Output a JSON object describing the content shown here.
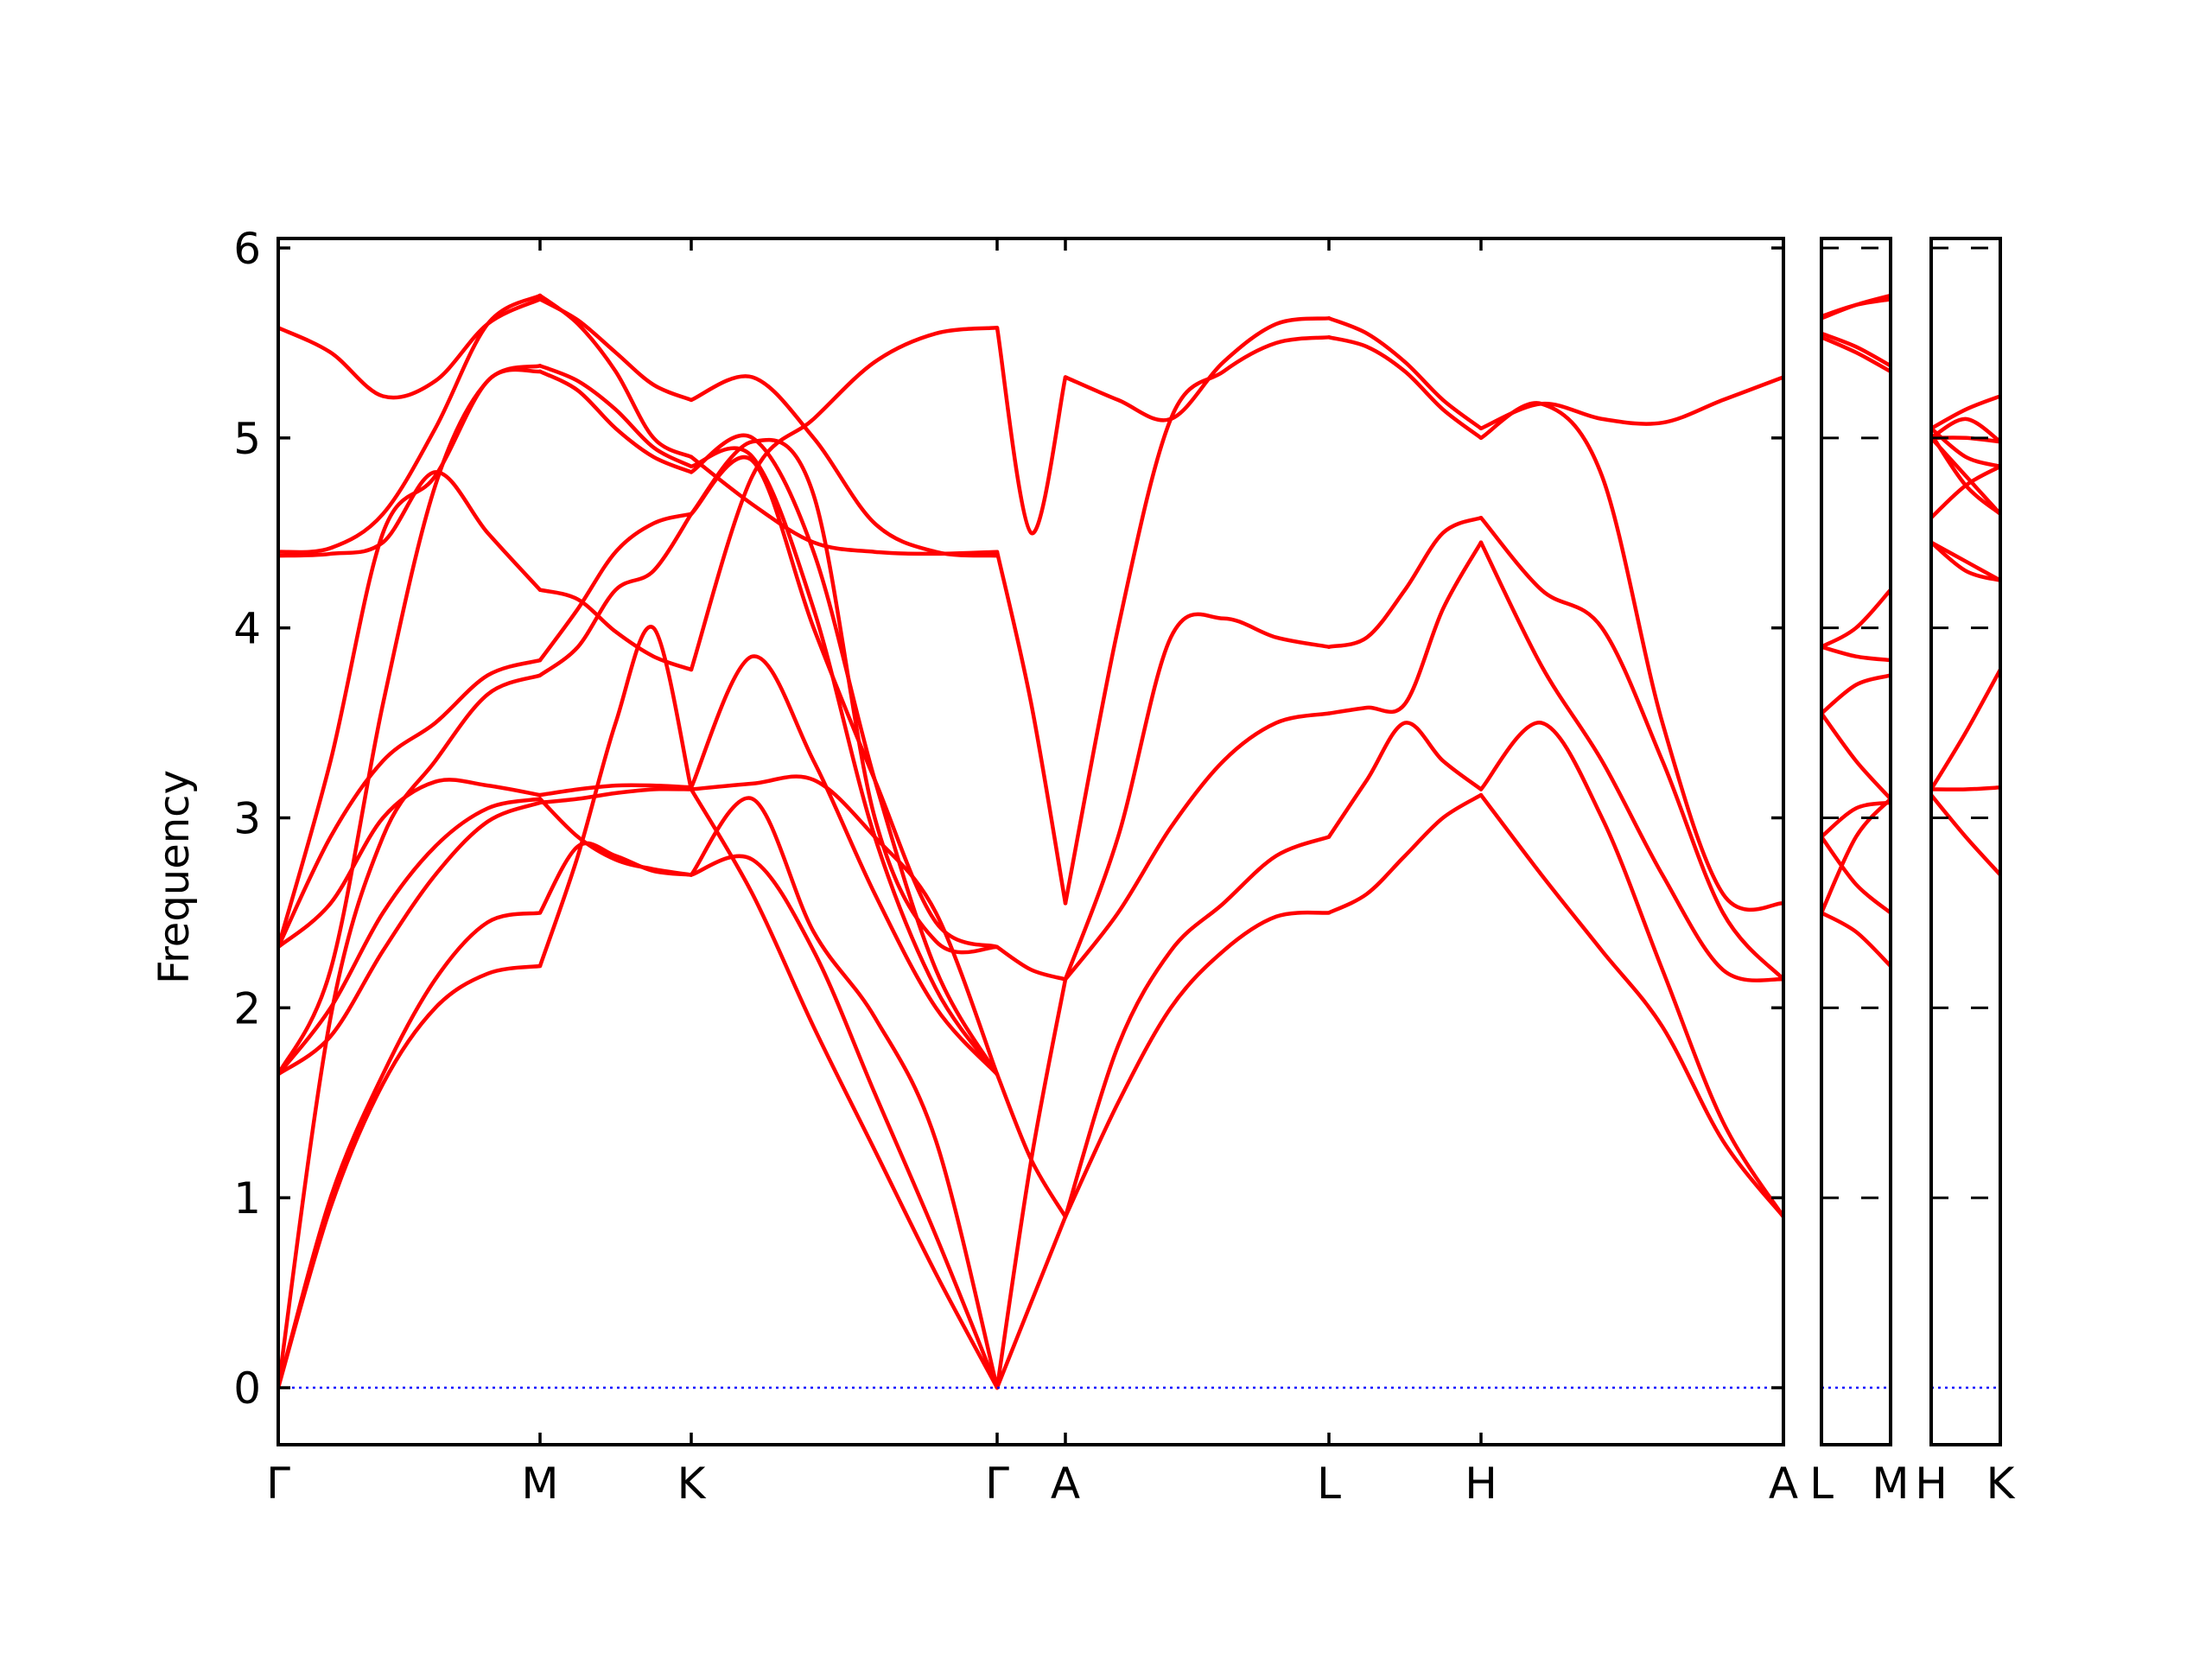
{
  "chart_data": {
    "type": "line",
    "ylabel": "Frequency",
    "ylim": [
      -0.3,
      6.05
    ],
    "yticks": [
      "0",
      "1",
      "2",
      "3",
      "4",
      "5",
      "6"
    ],
    "band_color": "#ff0000",
    "zero_line_color": "#0000ff",
    "panels": [
      {
        "name": "main",
        "xlabels": [
          "Γ",
          "M",
          "K",
          "Γ",
          "A",
          "L",
          "H",
          "A"
        ],
        "segments": [
          {
            "path": "Γ-M",
            "x": [
              0,
              0.2,
              0.4,
              0.6,
              0.8,
              1
            ],
            "bands": [
              [
                0,
                0.95,
                1.6,
                2.0,
                2.18,
                2.22
              ],
              [
                0,
                1.0,
                1.65,
                2.15,
                2.45,
                2.5
              ],
              [
                1.65,
                1.85,
                2.3,
                2.7,
                2.98,
                3.08
              ],
              [
                1.65,
                2.0,
                2.5,
                2.85,
                3.05,
                3.1
              ],
              [
                0,
                1.95,
                2.9,
                3.3,
                3.65,
                3.75
              ],
              [
                2.32,
                2.55,
                3.0,
                3.19,
                3.17,
                3.12
              ],
              [
                2.32,
                2.9,
                3.3,
                3.5,
                3.75,
                3.83
              ],
              [
                1.65,
                2.2,
                3.6,
                4.75,
                5.3,
                5.35
              ],
              [
                2.32,
                3.3,
                4.5,
                4.8,
                5.3,
                5.38
              ],
              [
                4.38,
                4.39,
                4.45,
                4.82,
                4.5,
                4.2
              ],
              [
                4.4,
                4.42,
                4.6,
                5.05,
                5.6,
                5.75
              ],
              [
                5.58,
                5.45,
                5.22,
                5.3,
                5.6,
                5.73
              ]
            ]
          },
          {
            "path": "M-K",
            "x": [
              0,
              0.25,
              0.5,
              0.75,
              1
            ],
            "bands": [
              [
                2.22,
                2.8,
                3.5,
                4.0,
                3.15
              ],
              [
                2.5,
                2.85,
                2.8,
                2.72,
                2.7
              ],
              [
                3.08,
                3.1,
                3.13,
                3.15,
                3.15
              ],
              [
                3.1,
                2.9,
                2.78,
                2.73,
                2.7
              ],
              [
                3.75,
                3.9,
                4.2,
                4.3,
                4.6
              ],
              [
                3.12,
                3.15,
                3.17,
                3.17,
                3.16
              ],
              [
                3.83,
                4.1,
                4.4,
                4.55,
                4.6
              ],
              [
                5.35,
                5.25,
                5.05,
                4.9,
                4.82
              ],
              [
                5.38,
                5.3,
                5.15,
                4.95,
                4.85
              ],
              [
                4.2,
                4.15,
                3.98,
                3.85,
                3.78
              ],
              [
                5.75,
                5.6,
                5.35,
                5.0,
                4.9
              ],
              [
                5.73,
                5.62,
                5.45,
                5.28,
                5.2
              ]
            ]
          },
          {
            "path": "K-Γ",
            "x": [
              0,
              0.2,
              0.4,
              0.6,
              0.8,
              1
            ],
            "bands": [
              [
                3.15,
                2.6,
                1.9,
                1.25,
                0.6,
                0
              ],
              [
                2.7,
                2.78,
                2.3,
                1.55,
                0.8,
                0
              ],
              [
                3.15,
                3.18,
                3.2,
                2.9,
                2.5,
                1.65
              ],
              [
                2.7,
                3.1,
                2.4,
                1.95,
                1.3,
                0
              ],
              [
                4.6,
                4.98,
                4.7,
                3.0,
                2.35,
                2.32
              ],
              [
                3.16,
                3.85,
                3.3,
                2.6,
                2.0,
                1.65
              ],
              [
                4.6,
                4.88,
                4.0,
                3.2,
                2.45,
                2.32
              ],
              [
                4.82,
                5.0,
                4.4,
                3.2,
                2.2,
                1.65
              ],
              [
                4.85,
                4.9,
                4.1,
                2.9,
                2.1,
                1.65
              ],
              [
                3.78,
                4.8,
                5.1,
                5.4,
                5.55,
                5.58
              ],
              [
                4.9,
                4.65,
                4.45,
                4.4,
                4.39,
                4.4
              ],
              [
                5.2,
                5.32,
                5.0,
                4.55,
                4.4,
                4.38
              ]
            ]
          },
          {
            "path": "Γ-A",
            "x": [
              0,
              0.5,
              1
            ],
            "bands": [
              [
                0,
                0.45,
                0.9
              ],
              [
                0,
                1.2,
                2.15
              ],
              [
                1.65,
                1.2,
                0.9
              ],
              [
                2.32,
                2.2,
                2.15
              ],
              [
                4.4,
                3.6,
                2.55
              ],
              [
                5.58,
                4.5,
                5.32
              ]
            ]
          },
          {
            "path": "A-L",
            "x": [
              0,
              0.2,
              0.4,
              0.6,
              0.8,
              1
            ],
            "bands": [
              [
                0.9,
                1.5,
                2.0,
                2.3,
                2.48,
                2.5
              ],
              [
                0.9,
                1.8,
                2.3,
                2.55,
                2.8,
                2.9
              ],
              [
                2.15,
                2.5,
                2.95,
                3.3,
                3.5,
                3.55
              ],
              [
                2.15,
                2.9,
                3.95,
                4.05,
                3.95,
                3.9
              ],
              [
                2.55,
                4.0,
                5.1,
                5.35,
                5.5,
                5.53
              ],
              [
                5.32,
                5.2,
                5.1,
                5.4,
                5.6,
                5.63
              ]
            ]
          },
          {
            "path": "L-H",
            "x": [
              0,
              0.25,
              0.5,
              0.75,
              1
            ],
            "bands": [
              [
                2.5,
                2.6,
                2.8,
                3.0,
                3.12
              ],
              [
                2.9,
                3.2,
                3.5,
                3.3,
                3.15
              ],
              [
                3.55,
                3.58,
                3.6,
                4.1,
                4.45
              ],
              [
                3.9,
                3.95,
                4.2,
                4.5,
                4.58
              ],
              [
                5.53,
                5.48,
                5.35,
                5.15,
                5.0
              ],
              [
                5.63,
                5.55,
                5.4,
                5.2,
                5.05
              ]
            ]
          },
          {
            "path": "H-A",
            "x": [
              0,
              0.2,
              0.4,
              0.6,
              0.8,
              1
            ],
            "bands": [
              [
                3.12,
                2.7,
                2.3,
                1.9,
                1.3,
                0.9
              ],
              [
                3.15,
                3.5,
                3.0,
                2.2,
                1.4,
                0.9
              ],
              [
                4.45,
                3.8,
                3.3,
                2.7,
                2.2,
                2.15
              ],
              [
                4.58,
                4.2,
                4.0,
                3.3,
                2.5,
                2.15
              ],
              [
                5.0,
                5.18,
                4.8,
                3.5,
                2.6,
                2.55
              ],
              [
                5.05,
                5.18,
                5.1,
                5.08,
                5.2,
                5.32
              ]
            ]
          }
        ]
      },
      {
        "name": "L-M",
        "xlabels": [
          "L",
          "M"
        ],
        "segments": [
          {
            "path": "L-M",
            "x": [
              0,
              0.5,
              1
            ],
            "bands": [
              [
                2.5,
                2.4,
                2.22
              ],
              [
                2.9,
                2.65,
                2.5
              ],
              [
                3.55,
                3.3,
                3.1
              ],
              [
                2.5,
                2.9,
                3.1
              ],
              [
                3.9,
                3.85,
                3.83
              ],
              [
                3.9,
                4.0,
                4.2
              ],
              [
                3.55,
                3.7,
                3.75
              ],
              [
                5.53,
                5.45,
                5.35
              ],
              [
                5.55,
                5.48,
                5.38
              ],
              [
                5.63,
                5.7,
                5.75
              ],
              [
                5.64,
                5.7,
                5.73
              ],
              [
                2.9,
                3.05,
                3.08
              ]
            ]
          }
        ]
      },
      {
        "name": "H-K",
        "xlabels": [
          "H",
          "K"
        ],
        "segments": [
          {
            "path": "H-K",
            "x": [
              0,
              0.5,
              1
            ],
            "bands": [
              [
                3.12,
                2.9,
                2.7
              ],
              [
                3.15,
                3.15,
                3.16
              ],
              [
                3.15,
                3.45,
                3.78
              ],
              [
                4.45,
                4.35,
                4.25
              ],
              [
                4.58,
                4.75,
                4.85
              ],
              [
                5.0,
                4.8,
                4.6
              ],
              [
                5.02,
                4.75,
                4.6
              ],
              [
                5.05,
                4.9,
                4.85
              ],
              [
                5.05,
                5.15,
                5.22
              ],
              [
                5.0,
                5.1,
                4.98
              ],
              [
                4.45,
                4.3,
                4.25
              ],
              [
                5.0,
                5.0,
                4.98
              ]
            ]
          }
        ]
      }
    ]
  }
}
